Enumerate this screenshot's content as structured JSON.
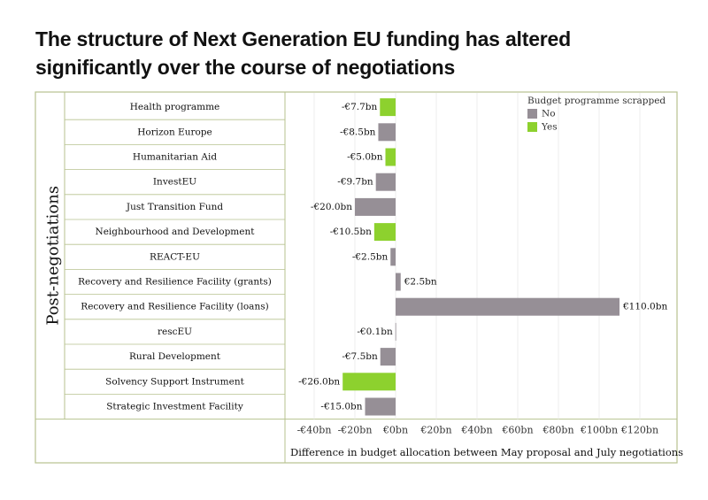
{
  "title": "The structure of Next Generation EU funding has altered significantly over the course of negotiations",
  "colors": {
    "No": "#968f96",
    "Yes": "#8dd12e",
    "frame": "#b7c28f",
    "grid": "#ececec"
  },
  "chart_data": {
    "type": "bar",
    "orientation": "horizontal",
    "row_group_label": "Post-negotiations",
    "xlabel": "Difference in budget allocation between May proposal and July negotiations",
    "xlim": [
      -45,
      130
    ],
    "xticks": [
      -40,
      -20,
      0,
      20,
      40,
      60,
      80,
      100,
      120
    ],
    "xtick_labels": [
      "-€40bn",
      "-€20bn",
      "€0bn",
      "€20bn",
      "€40bn",
      "€60bn",
      "€80bn",
      "€100bn",
      "€120bn"
    ],
    "grid": true,
    "legend": {
      "title": "Budget programme scrapped",
      "entries": [
        "No",
        "Yes"
      ],
      "placement": "top-right"
    },
    "categories": [
      "Health programme",
      "Horizon Europe",
      "Humanitarian Aid",
      "InvestEU",
      "Just Transition Fund",
      "Neighbourhood and Development",
      "REACT-EU",
      "Recovery and Resilience Facility (grants)",
      "Recovery and Resilience Facility (loans)",
      "rescEU",
      "Rural Development",
      "Solvency Support Instrument",
      "Strategic Investment Facility"
    ],
    "values": [
      -7.7,
      -8.5,
      -5.0,
      -9.7,
      -20.0,
      -10.5,
      -2.5,
      2.5,
      110.0,
      -0.1,
      -7.5,
      -26.0,
      -15.0
    ],
    "data_labels": [
      "-€7.7bn",
      "-€8.5bn",
      "-€5.0bn",
      "-€9.7bn",
      "-€20.0bn",
      "-€10.5bn",
      "-€2.5bn",
      "€2.5bn",
      "€110.0bn",
      "-€0.1bn",
      "-€7.5bn",
      "-€26.0bn",
      "-€15.0bn"
    ],
    "scrapped": [
      "Yes",
      "No",
      "Yes",
      "No",
      "No",
      "Yes",
      "No",
      "No",
      "No",
      "No",
      "No",
      "Yes",
      "No"
    ]
  }
}
